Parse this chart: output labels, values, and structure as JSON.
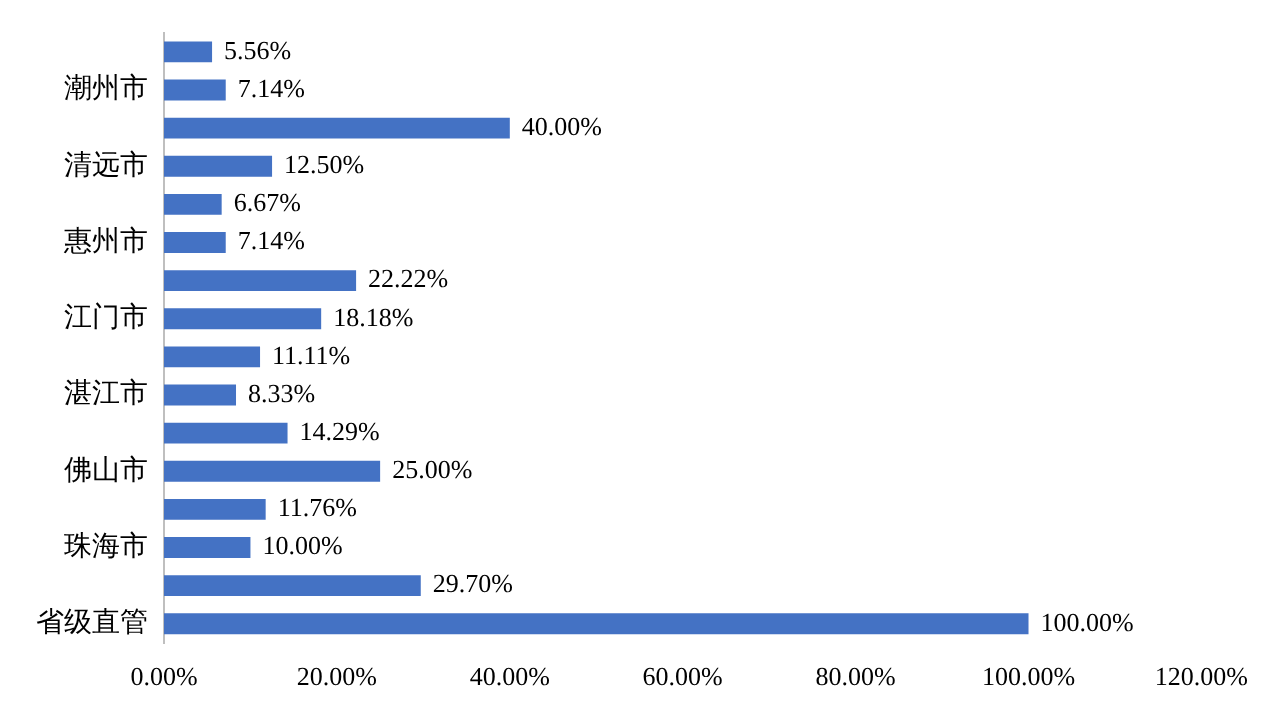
{
  "chart_data": {
    "type": "bar",
    "orientation": "horizontal",
    "categories": [
      null,
      "潮州市",
      null,
      "清远市",
      null,
      "惠州市",
      null,
      "江门市",
      null,
      "湛江市",
      null,
      "佛山市",
      null,
      "珠海市",
      null,
      "省级直管"
    ],
    "values": [
      5.56,
      7.14,
      40.0,
      12.5,
      6.67,
      7.14,
      22.22,
      18.18,
      11.11,
      8.33,
      14.29,
      25.0,
      11.76,
      10.0,
      29.7,
      100.0
    ],
    "value_labels": [
      "5.56%",
      "7.14%",
      "40.00%",
      "12.50%",
      "6.67%",
      "7.14%",
      "22.22%",
      "18.18%",
      "11.11%",
      "8.33%",
      "14.29%",
      "25.00%",
      "11.76%",
      "10.00%",
      "29.70%",
      "100.00%"
    ],
    "color": "#4472c4",
    "xlim": [
      0,
      120
    ],
    "xticks": [
      {
        "value": 0,
        "label": "0.00%"
      },
      {
        "value": 20,
        "label": "20.00%"
      },
      {
        "value": 40,
        "label": "40.00%"
      },
      {
        "value": 60,
        "label": "60.00%"
      },
      {
        "value": 80,
        "label": "80.00%"
      },
      {
        "value": 100,
        "label": "100.00%"
      },
      {
        "value": 120,
        "label": "120.00%"
      }
    ],
    "grid": false,
    "legend": false
  }
}
